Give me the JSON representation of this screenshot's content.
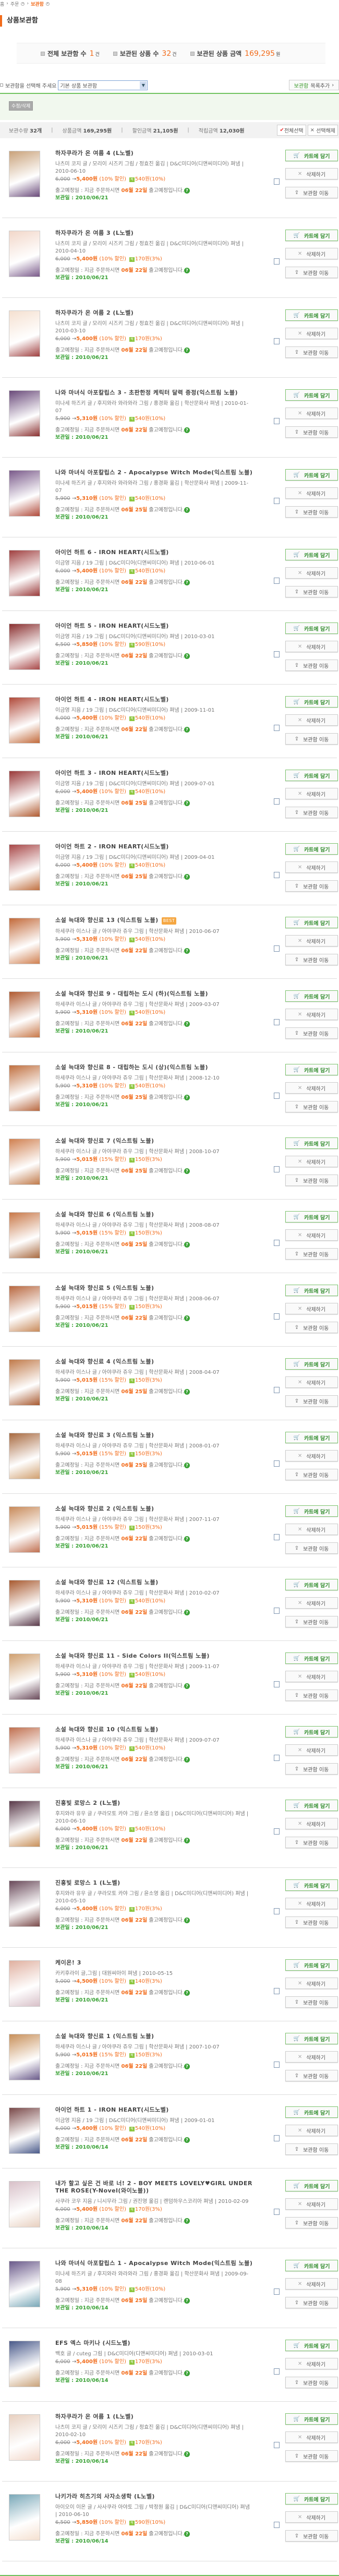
{
  "breadcrumb": [
    "홈",
    "주문",
    "보관함"
  ],
  "page_title": "상품보관함",
  "summary": [
    {
      "label": "전체 보관함 수",
      "value": "1",
      "unit": "건"
    },
    {
      "label": "보관된 상품 수",
      "value": "32",
      "unit": "건"
    },
    {
      "label": "보관된 상품 금액",
      "value": "169,295",
      "unit": "원"
    }
  ],
  "selector": {
    "label": "보관함을 선택해 주세요",
    "value": "기본 상품 보관함",
    "add_button_a": "보관함",
    "add_button_b": "목록추가"
  },
  "edit_button": "수정/삭제",
  "stats": {
    "count_label": "보관수량",
    "count": "32개",
    "amount_label": "상품금액",
    "amount": "169,295원",
    "discount_label": "할인금액",
    "discount": "21,105원",
    "points_label": "적립금액",
    "points": "12,030원",
    "select_all": "전체선택",
    "deselect": "선택해제"
  },
  "labels": {
    "arrow": "→",
    "points_icon": "적",
    "delivery_prefix": "출고예정일 : 지금 주문하시면",
    "delivery_suffix": "출고예정입니다.",
    "stored_label": "보관일 :",
    "cart": "카트에 담기",
    "delete": "삭제하기",
    "move": "보관함 이동"
  },
  "colors": {
    "accent": "#f26c1b",
    "green": "#3aa236",
    "line": "#6fc25f"
  },
  "items": [
    {
      "title": "하자쿠라가 온 여름 4 (L노벨)",
      "info": "나츠미 코지 글 / 모리이 시즈키 그림 / 정효진 옮김 | D&C미디어(디앤씨미디어) 펴냄 | 2010-06-10",
      "list": "6,000",
      "sale": "5,400원",
      "dc": "(10% 할인)",
      "pts": "540원(10%)",
      "ship": "06월 22일",
      "stored": "2010/06/21"
    },
    {
      "title": "하자쿠라가 온 여름 3 (L노벨)",
      "info": "나츠미 코지 글 / 모리이 시즈키 그림 / 정효진 옮김 | D&C미디어(디앤씨미디어) 펴냄 | 2010-04-10",
      "list": "6,000",
      "sale": "5,400원",
      "dc": "(10% 할인)",
      "pts": "170원(3%)",
      "ship": "06월 22일",
      "stored": "2010/06/21"
    },
    {
      "title": "하자쿠라가 온 여름 2 (L노벨)",
      "info": "나츠미 코지 글 / 모리이 시즈키 그림 / 정효진 옮김 | D&C미디어(디앤씨미디어) 펴냄 | 2010-03-10",
      "list": "6,000",
      "sale": "5,400원",
      "dc": "(10% 할인)",
      "pts": "170원(3%)",
      "ship": "06월 22일",
      "stored": "2010/06/21"
    },
    {
      "title": "나와 마녀식 아포칼립스 3 - 초판한정 케릭터 달력 증정(익스트림 노블)",
      "info": "미나세 하즈키 글 / 후지와라 와라와라 그림 / 홍경화 옮김 | 학산문화사 펴냄 | 2010-01-07",
      "list": "5,900",
      "sale": "5,310원",
      "dc": "(10% 할인)",
      "pts": "540원(10%)",
      "ship": "06월 22일",
      "stored": "2010/06/21"
    },
    {
      "title": "나와 마녀식 아포칼립스 2 - Apocalypse Witch Mode(익스트림 노블)",
      "info": "미나세 하즈키 글 / 후지와라 와라와라 그림 / 홍경화 옮김 | 학산문화사 펴냄 | 2009-11-07",
      "list": "5,900",
      "sale": "5,310원",
      "dc": "(10% 할인)",
      "pts": "540원(10%)",
      "ship": "06월 25일",
      "stored": "2010/06/21"
    },
    {
      "title": "아이언 하트 6 - IRON HEART(시드노벨)",
      "info": "이금영 지음 / 19 그림 | D&C미디어(디앤씨미디어) 펴냄 | 2010-06-01",
      "list": "6,000",
      "sale": "5,400원",
      "dc": "(10% 할인)",
      "pts": "540원(10%)",
      "ship": "06월 22일",
      "stored": "2010/06/21"
    },
    {
      "title": "아이언 하트 5 - IRON HEART(시드노벨)",
      "info": "이금영 지음 / 19 그림 | D&C미디어(디앤씨미디어) 펴냄 | 2010-03-01",
      "list": "6,500",
      "sale": "5,850원",
      "dc": "(10% 할인)",
      "pts": "590원(10%)",
      "ship": "06월 22일",
      "stored": "2010/06/21"
    },
    {
      "title": "아이언 하트 4 - IRON HEART(시드노벨)",
      "info": "이금영 지음 / 19 그림 | D&C미디어(디앤씨미디어) 펴냄 | 2009-11-01",
      "list": "6,000",
      "sale": "5,400원",
      "dc": "(10% 할인)",
      "pts": "540원(10%)",
      "ship": "06월 22일",
      "stored": "2010/06/21"
    },
    {
      "title": "아이언 하트 3 - IRON HEART(시드노벨)",
      "info": "이금영 지음 / 19 그림 | D&C미디어(디앤씨미디어) 펴냄 | 2009-07-01",
      "list": "6,000",
      "sale": "5,400원",
      "dc": "(10% 할인)",
      "pts": "540원(10%)",
      "ship": "06월 25일",
      "stored": "2010/06/21"
    },
    {
      "title": "아이언 하트 2 - IRON HEART(시드노벨)",
      "info": "이금영 지음 / 19 그림 | D&C미디어(디앤씨미디어) 펴냄 | 2009-04-01",
      "list": "6,000",
      "sale": "5,400원",
      "dc": "(10% 할인)",
      "pts": "540원(10%)",
      "ship": "06월 25일",
      "stored": "2010/06/21"
    },
    {
      "title": "소설 늑대와 향신료 13 (익스트림 노블)",
      "badge": "BEST",
      "info": "하세쿠라 이스나 글 / 아야쿠라 쥬우 그림 | 학산문화사 펴냄 | 2010-06-07",
      "list": "5,900",
      "sale": "5,310원",
      "dc": "(10% 할인)",
      "pts": "540원(10%)",
      "ship": "06월 22일",
      "stored": "2010/06/21"
    },
    {
      "title": "소설 늑대와 향신료 9 - 대립하는 도시 (하)(익스트림 노블)",
      "info": "하세쿠라 이스나 글 / 아야쿠라 쥬우 그림 | 학산문화사 펴냄 | 2009-03-07",
      "list": "5,900",
      "sale": "5,310원",
      "dc": "(10% 할인)",
      "pts": "540원(10%)",
      "ship": "06월 22일",
      "stored": "2010/06/21"
    },
    {
      "title": "소설 늑대와 향신료 8 - 대립하는 도시 (상)(익스트림 노블)",
      "info": "하세쿠라 이스나 글 / 아야쿠라 쥬우 그림 | 학산문화사 펴냄 | 2008-12-10",
      "list": "5,900",
      "sale": "5,310원",
      "dc": "(10% 할인)",
      "pts": "540원(10%)",
      "ship": "06월 25일",
      "stored": "2010/06/21"
    },
    {
      "title": "소설 늑대와 향신료 7 (익스트림 노블)",
      "info": "하세쿠라 이스나 글 / 아야쿠라 쥬우 그림 | 학산문화사 펴냄 | 2008-10-07",
      "list": "5,900",
      "sale": "5,015원",
      "dc": "(15% 할인)",
      "pts": "150원(3%)",
      "ship": "06월 25일",
      "stored": "2010/06/21"
    },
    {
      "title": "소설 늑대와 향신료 6 (익스트림 노블)",
      "info": "하세쿠라 이스나 글 / 아야쿠라 쥬우 그림 | 학산문화사 펴냄 | 2008-08-07",
      "list": "5,900",
      "sale": "5,015원",
      "dc": "(15% 할인)",
      "pts": "150원(3%)",
      "ship": "06월 25일",
      "stored": "2010/06/21"
    },
    {
      "title": "소설 늑대와 향신료 5 (익스트림 노블)",
      "info": "하세쿠라 이스나 글 / 아야쿠라 쥬우 그림 | 학산문화사 펴냄 | 2008-06-07",
      "list": "5,900",
      "sale": "5,015원",
      "dc": "(15% 할인)",
      "pts": "150원(3%)",
      "ship": "06월 22일",
      "stored": "2010/06/21"
    },
    {
      "title": "소설 늑대와 향신료 4 (익스트림 노블)",
      "info": "하세쿠라 이스나 글 / 아야쿠라 쥬우 그림 | 학산문화사 펴냄 | 2008-04-07",
      "list": "5,900",
      "sale": "5,015원",
      "dc": "(15% 할인)",
      "pts": "150원(3%)",
      "ship": "06월 25일",
      "stored": "2010/06/21"
    },
    {
      "title": "소설 늑대와 향신료 3 (익스트림 노블)",
      "info": "하세쿠라 이스나 글 / 아야쿠라 쥬우 그림 | 학산문화사 펴냄 | 2008-01-07",
      "list": "5,900",
      "sale": "5,015원",
      "dc": "(15% 할인)",
      "pts": "150원(3%)",
      "ship": "06월 25일",
      "stored": "2010/06/21"
    },
    {
      "title": "소설 늑대와 향신료 2 (익스트림 노블)",
      "info": "하세쿠라 이스나 글 / 아야쿠라 쥬우 그림 | 학산문화사 펴냄 | 2007-11-07",
      "list": "5,900",
      "sale": "5,015원",
      "dc": "(15% 할인)",
      "pts": "150원(3%)",
      "ship": "06월 22일",
      "stored": "2010/06/21"
    },
    {
      "title": "소설 늑대와 향신료 12 (익스트림 노블)",
      "info": "하세쿠라 이스나 글 / 아야쿠라 쥬우 그림 | 학산문화사 펴냄 | 2010-02-07",
      "list": "5,900",
      "sale": "5,310원",
      "dc": "(10% 할인)",
      "pts": "540원(10%)",
      "ship": "06월 22일",
      "stored": "2010/06/21"
    },
    {
      "title": "소설 늑대와 향신료 11 - Side Colors II(익스트림 노블)",
      "info": "하세쿠라 이스나 글 / 아야쿠라 쥬우 그림 | 학산문화사 펴냄 | 2009-11-07",
      "list": "5,900",
      "sale": "5,310원",
      "dc": "(10% 할인)",
      "pts": "540원(10%)",
      "ship": "06월 22일",
      "stored": "2010/06/21"
    },
    {
      "title": "소설 늑대와 향신료 10 (익스트림 노블)",
      "info": "하세쿠라 이스나 글 / 아야쿠라 쥬우 그림 | 학산문화사 펴냄 | 2009-07-07",
      "list": "5,900",
      "sale": "5,310원",
      "dc": "(10% 할인)",
      "pts": "540원(10%)",
      "ship": "06월 22일",
      "stored": "2010/06/21"
    },
    {
      "title": "진홍빛 로망스 2 (L노벨)",
      "info": "후지와라 유우 글 / 쿠라모토 카야 그림 / 윤소영 옮김 | D&C미디어(디앤씨미디어) 펴냄 | 2010-06-10",
      "list": "6,000",
      "sale": "5,400원",
      "dc": "(10% 할인)",
      "pts": "540원(10%)",
      "ship": "06월 22일",
      "stored": "2010/06/21"
    },
    {
      "title": "진홍빛 로망스 1 (L노벨)",
      "info": "후지와라 유우 글 / 쿠라모토 카야 그림 / 윤소영 옮김 | D&C미디어(디앤씨미디어) 펴냄 | 2010-05-10",
      "list": "6,000",
      "sale": "5,400원",
      "dc": "(10% 할인)",
      "pts": "170원(3%)",
      "ship": "06월 22일",
      "stored": "2010/06/21"
    },
    {
      "title": "케이온! 3",
      "info": "카키후라이 글,그림 | 대원씨아이 펴냄 | 2010-05-15",
      "list": "5,000",
      "sale": "4,500원",
      "dc": "(10% 할인)",
      "pts": "140원(3%)",
      "ship": "06월 22일",
      "stored": "2010/06/21"
    },
    {
      "title": "소설 늑대와 향신료 1 (익스트림 노블)",
      "info": "하세쿠라 이스나 글 / 아야쿠라 쥬우 그림 | 학산문화사 펴냄 | 2007-10-07",
      "list": "5,900",
      "sale": "5,015원",
      "dc": "(15% 할인)",
      "pts": "150원(3%)",
      "ship": "06월 22일",
      "stored": "2010/06/21"
    },
    {
      "title": "아이언 하트 1 - IRON HEART(시드노벨)",
      "info": "이금영 지음 / 19 그림 | D&C미디어(디앤씨미디어) 펴냄 | 2009-01-01",
      "list": "6,000",
      "sale": "5,400원",
      "dc": "(10% 할인)",
      "pts": "540원(10%)",
      "ship": "06월 22일",
      "stored": "2010/06/14"
    },
    {
      "title": "내가 할고 싶은 건 바로 너! 2 - BOY MEETS LOVELY♥GIRL UNDER THE ROSE(Y-Novel(와이노블))",
      "info": "사쿠라 코우 지음 / 니시무라 그림 / 권진영 옮김 | 랜덤하우스코리아 펴냄 | 2010-02-09",
      "list": "6,000",
      "sale": "5,400원",
      "dc": "(10% 할인)",
      "pts": "170원(3%)",
      "ship": "06월 22일",
      "stored": "2010/06/14"
    },
    {
      "title": "나와 마녀식 아포칼립스 1 - Apocalypse Witch Mode(익스트림 노블)",
      "info": "미나세 하즈키 글 / 후지와라 와라와라 그림 / 홍경화 옮김 | 학산문화사 펴냄 | 2009-09-08",
      "list": "5,900",
      "sale": "5,310원",
      "dc": "(10% 할인)",
      "pts": "540원(10%)",
      "ship": "06월 25일",
      "stored": "2010/06/14"
    },
    {
      "title": "EFS 엑스 마키나 (시드노벨)",
      "info": "백호 글 / cuteg 그림 | D&C미디어(디앤씨미디어) 펴냄 | 2010-03-01",
      "list": "6,000",
      "sale": "5,400원",
      "dc": "(10% 할인)",
      "pts": "170원(3%)",
      "ship": "06월 22일",
      "stored": "2010/06/14"
    },
    {
      "title": "하자쿠라가 온 여름 1 (L노벨)",
      "info": "나츠미 코지 글 / 모리이 시즈키 그림 / 정효진 옮김 | D&C미디어(디앤씨미디어) 펴냄 | 2010-02-10",
      "list": "6,000",
      "sale": "5,400원",
      "dc": "(10% 할인)",
      "pts": "170원(3%)",
      "ship": "06월 22일",
      "stored": "2010/06/14"
    },
    {
      "title": "나키가라 히츠기의 사자소생학 (L노벨)",
      "info": "아이오이 이온 글 / 사사쿠라 아야토 그림 / 박정원 옮김 | D&C미디어(디앤씨미디어) 펴냄 | 2010-06-10",
      "list": "6,500",
      "sale": "5,850원",
      "dc": "(10% 할인)",
      "pts": "590원(10%)",
      "ship": "06월 22일",
      "stored": "2010/06/14"
    }
  ]
}
